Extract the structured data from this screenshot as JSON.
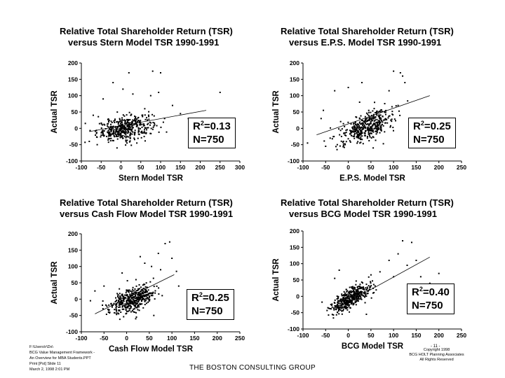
{
  "footer": {
    "left_lines": [
      "F:\\Users\\r\\Dx\\",
      "BCG Value Management Framework -",
      "An Overview for MBA Students.PPT",
      "Print [Pst] Slide 11",
      "March 2, 1998 2:01 PM"
    ],
    "right_lines": [
      "Copyright 1998",
      "BCG HOLT Planning Associates",
      "All Rights Reserved"
    ],
    "page_number": "- 11 -",
    "brand": "THE BOSTON CONSULTING GROUP"
  },
  "chart_data": [
    {
      "type": "scatter",
      "title_line1": "Relative Total Shareholder Return (TSR)",
      "title_line2": "versus  Stern Model TSR 1990-1991",
      "xlabel": "Stern Model TSR",
      "ylabel": "Actual TSR",
      "xlim": [
        -100,
        300
      ],
      "ylim": [
        -100,
        200
      ],
      "xticks": [
        "-100",
        "-50",
        "0",
        "50",
        "100",
        "150",
        "200",
        "250",
        "300"
      ],
      "yticks": [
        "200",
        "150",
        "100",
        "50",
        "0",
        "-50",
        "-100"
      ],
      "stat_r2": "=0.13",
      "stat_n": "N=750",
      "trend": {
        "x": [
          -80,
          215
        ],
        "y": [
          -10,
          55
        ]
      },
      "cloud": {
        "n": 420,
        "x_center": 10,
        "x_spread": 35,
        "y_center": 0,
        "y_spread": 18,
        "slope": 0.2
      },
      "outliers": [
        [
          -45,
          90
        ],
        [
          -20,
          140
        ],
        [
          20,
          170
        ],
        [
          80,
          175
        ],
        [
          100,
          170
        ],
        [
          5,
          120
        ],
        [
          30,
          105
        ],
        [
          75,
          100
        ],
        [
          95,
          110
        ],
        [
          60,
          60
        ],
        [
          110,
          30
        ],
        [
          150,
          45
        ],
        [
          170,
          30
        ],
        [
          200,
          20
        ],
        [
          250,
          110
        ],
        [
          -80,
          -40
        ],
        [
          -60,
          -50
        ],
        [
          40,
          -45
        ],
        [
          -10,
          -60
        ],
        [
          -90,
          15
        ],
        [
          -70,
          40
        ],
        [
          130,
          70
        ]
      ]
    },
    {
      "type": "scatter",
      "title_line1": "Relative Total Shareholder Return (TSR)",
      "title_line2": "versus  E.P.S. Model TSR 1990-1991",
      "xlabel": "E.P.S. Model TSR",
      "ylabel": "Actual TSR",
      "xlim": [
        -100,
        250
      ],
      "ylim": [
        -100,
        200
      ],
      "xticks": [
        "-100",
        "-50",
        "0",
        "50",
        "100",
        "150",
        "200",
        "250"
      ],
      "yticks": [
        "200",
        "150",
        "100",
        "50",
        "0",
        "-50",
        "-100"
      ],
      "stat_r2": "=0.25",
      "stat_n": "N=750",
      "trend": {
        "x": [
          -70,
          180
        ],
        "y": [
          -20,
          100
        ]
      },
      "cloud": {
        "n": 420,
        "x_center": 40,
        "x_spread": 30,
        "y_center": 5,
        "y_spread": 20,
        "slope": 0.5
      },
      "outliers": [
        [
          -55,
          55
        ],
        [
          -30,
          115
        ],
        [
          0,
          125
        ],
        [
          100,
          175
        ],
        [
          115,
          170
        ],
        [
          125,
          140
        ],
        [
          120,
          160
        ],
        [
          -90,
          -45
        ],
        [
          -50,
          -55
        ],
        [
          55,
          -60
        ],
        [
          25,
          80
        ],
        [
          90,
          115
        ],
        [
          -60,
          30
        ],
        [
          150,
          20
        ],
        [
          200,
          0
        ],
        [
          -40,
          -30
        ],
        [
          110,
          70
        ],
        [
          30,
          140
        ]
      ]
    },
    {
      "type": "scatter",
      "title_line1": "Relative Total Shareholder Return (TSR)",
      "title_line2": "versus  Cash Flow Model TSR 1990-1991",
      "xlabel": "Cash Flow Model TSR",
      "ylabel": "Actual TSR",
      "xlim": [
        -100,
        250
      ],
      "ylim": [
        -100,
        200
      ],
      "xticks": [
        "-100",
        "-50",
        "0",
        "50",
        "100",
        "150",
        "200",
        "250"
      ],
      "yticks": [
        "200",
        "150",
        "100",
        "50",
        "0",
        "-50",
        "-100"
      ],
      "stat_r2": "=0.25",
      "stat_n": "N=750",
      "trend": {
        "x": [
          -70,
          105
        ],
        "y": [
          -45,
          75
        ]
      },
      "cloud": {
        "n": 420,
        "x_center": 15,
        "x_spread": 25,
        "y_center": 0,
        "y_spread": 18,
        "slope": 0.45
      },
      "outliers": [
        [
          85,
          170
        ],
        [
          95,
          175
        ],
        [
          70,
          140
        ],
        [
          100,
          125
        ],
        [
          55,
          100
        ],
        [
          40,
          110
        ],
        [
          -10,
          80
        ],
        [
          -50,
          40
        ],
        [
          -70,
          25
        ],
        [
          -40,
          -40
        ],
        [
          20,
          -60
        ],
        [
          60,
          -50
        ],
        [
          75,
          90
        ],
        [
          110,
          85
        ],
        [
          -80,
          -5
        ],
        [
          30,
          130
        ],
        [
          115,
          40
        ]
      ]
    },
    {
      "type": "scatter",
      "title_line1": "Relative Total Shareholder Return (TSR)",
      "title_line2": "versus  BCG Model TSR 1990-1991",
      "xlabel": "BCG Model TSR",
      "ylabel": "Actual TSR",
      "xlim": [
        -100,
        250
      ],
      "ylim": [
        -100,
        200
      ],
      "xticks": [
        "-100",
        "-50",
        "0",
        "50",
        "100",
        "150",
        "200",
        "250"
      ],
      "yticks": [
        "200",
        "150",
        "100",
        "50",
        "0",
        "-50",
        "-100"
      ],
      "stat_r2": "=0.40",
      "stat_n": "N=750",
      "trend": {
        "x": [
          -30,
          180
        ],
        "y": [
          -40,
          120
        ]
      },
      "cloud": {
        "n": 420,
        "x_center": 5,
        "x_spread": 22,
        "y_center": -5,
        "y_spread": 16,
        "slope": 0.75
      },
      "outliers": [
        [
          120,
          170
        ],
        [
          140,
          165
        ],
        [
          110,
          130
        ],
        [
          90,
          110
        ],
        [
          130,
          95
        ],
        [
          70,
          75
        ],
        [
          160,
          60
        ],
        [
          200,
          70
        ],
        [
          210,
          -20
        ],
        [
          -30,
          55
        ],
        [
          -20,
          80
        ],
        [
          -45,
          -35
        ],
        [
          40,
          -55
        ],
        [
          150,
          110
        ],
        [
          100,
          60
        ],
        [
          180,
          40
        ]
      ]
    }
  ]
}
